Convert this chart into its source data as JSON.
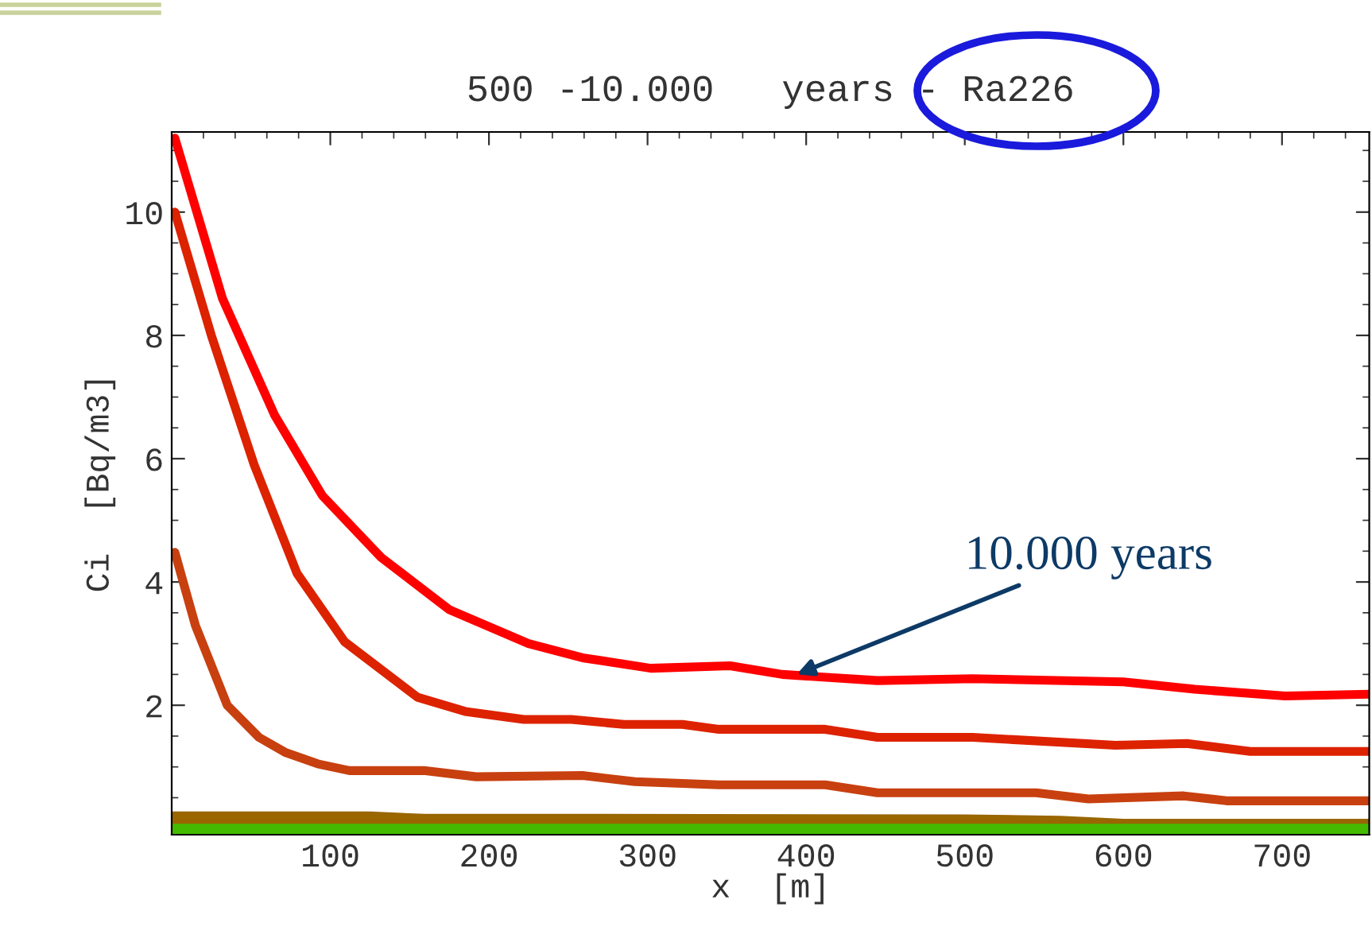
{
  "chart_data": {
    "type": "line",
    "title": "500 -10.000   years - Ra226",
    "xlabel": "x  [m]",
    "ylabel": "Ci  [Bq/m3]",
    "xlim": [
      0,
      755
    ],
    "ylim": [
      -0.1,
      11.3
    ],
    "xticks": [
      100,
      200,
      300,
      400,
      500,
      600,
      700
    ],
    "yticks": [
      2,
      4,
      6,
      8,
      10
    ],
    "grid": false,
    "legend": false,
    "marker": "none",
    "line_style": "solid",
    "annotations": [
      {
        "text": "10.000 years",
        "x": 394,
        "y": 2.5
      }
    ],
    "series": [
      {
        "color": "#ff0000",
        "x": [
          2,
          32,
          65,
          95,
          132,
          175,
          225,
          259,
          302,
          352,
          385,
          445,
          505,
          600,
          645,
          702,
          755
        ],
        "values": [
          11.2,
          8.6,
          6.7,
          5.4,
          4.4,
          3.55,
          3.0,
          2.77,
          2.6,
          2.64,
          2.5,
          2.4,
          2.43,
          2.38,
          2.26,
          2.15,
          2.18
        ]
      },
      {
        "color": "#dd2200",
        "x": [
          2,
          25,
          52,
          79,
          109,
          155,
          185,
          222,
          252,
          285,
          322,
          345,
          412,
          445,
          505,
          595,
          640,
          680,
          755
        ],
        "values": [
          10.0,
          8.0,
          5.9,
          4.14,
          3.03,
          2.13,
          1.9,
          1.77,
          1.77,
          1.69,
          1.69,
          1.61,
          1.61,
          1.48,
          1.48,
          1.35,
          1.38,
          1.25,
          1.25
        ]
      },
      {
        "color": "#c84010",
        "x": [
          2,
          15,
          35,
          55,
          72,
          92,
          112,
          159,
          192,
          259,
          292,
          345,
          412,
          445,
          545,
          578,
          638,
          665,
          755
        ],
        "values": [
          4.48,
          3.29,
          2.0,
          1.48,
          1.23,
          1.05,
          0.94,
          0.94,
          0.84,
          0.86,
          0.76,
          0.71,
          0.71,
          0.58,
          0.58,
          0.48,
          0.53,
          0.45,
          0.45
        ]
      },
      {
        "color": "#996600",
        "x": [
          0,
          125,
          159,
          275,
          500,
          560,
          600,
          755
        ],
        "values": [
          0.17,
          0.17,
          0.13,
          0.13,
          0.12,
          0.1,
          0.05,
          0.05
        ]
      },
      {
        "color": "#44bb00",
        "x": [
          0,
          755
        ],
        "values": [
          -0.03,
          -0.03
        ]
      }
    ]
  }
}
